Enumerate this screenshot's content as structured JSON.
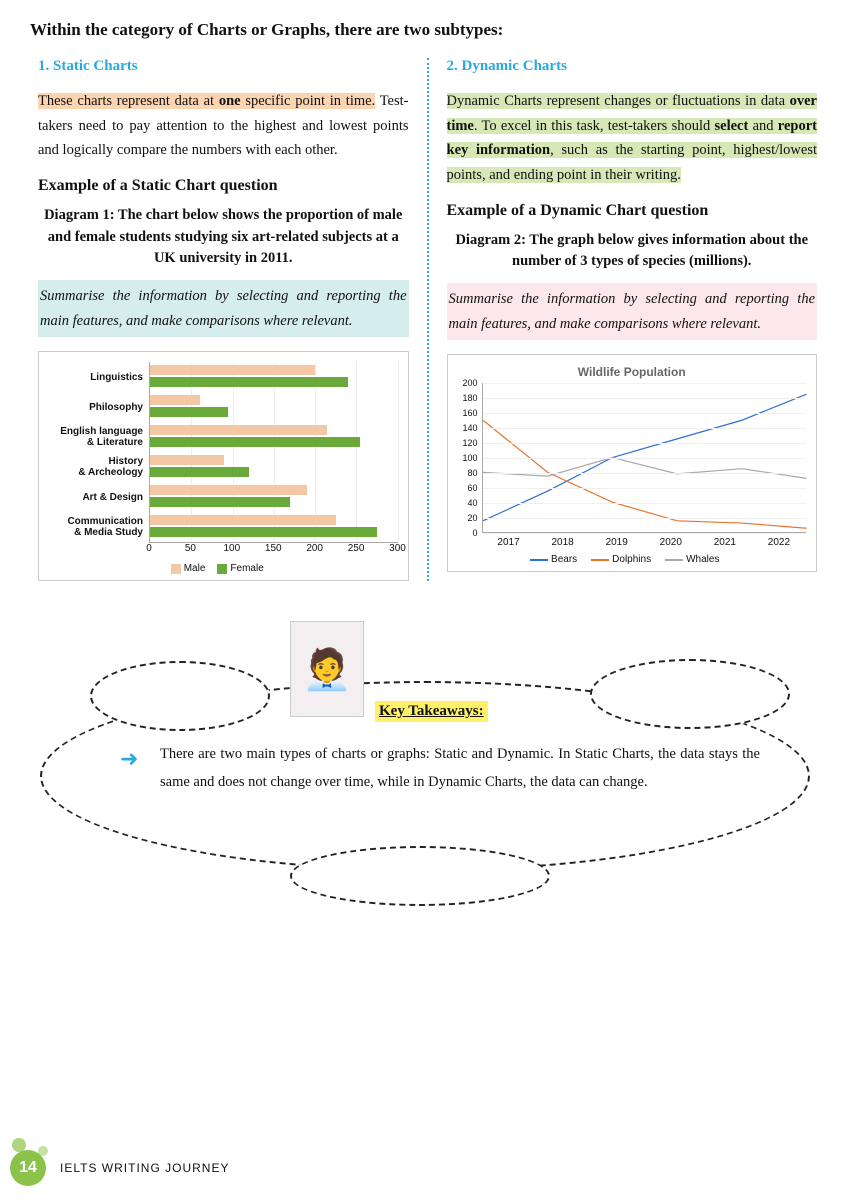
{
  "page": {
    "title": "Within the category of Charts or Graphs, there are two subtypes:",
    "footer_text": "IELTS WRITING JOURNEY",
    "page_number": "14"
  },
  "left": {
    "heading": "1. Static Charts",
    "para_pre": "These charts represent data at ",
    "para_bold1": "one",
    "para_hl_tail": " specific point in time.",
    "para_rest": " Test-takers need to pay attention to the highest and lowest points and logically compare the numbers with each other.",
    "example_heading": "Example of a Static Chart question",
    "diagram_title": "Diagram 1: The chart below shows the proportion of male and female students studying six art-related subjects at a UK university in 2011.",
    "instruction": "Summarise the information by selecting and reporting the main features, and make comparisons where relevant."
  },
  "right": {
    "heading": "2. Dynamic  Charts",
    "para_pre": "Dynamic Charts represent changes or fluctuations in data ",
    "para_bold1": "over time",
    "para_mid1": ". To excel in this task, test-takers should ",
    "para_bold2": "select",
    "para_mid2": " and ",
    "para_bold3": "report key information",
    "para_tail": ", such as the starting point, highest/lowest points, and ending point in their writing.",
    "example_heading": "Example of a Dynamic Chart question",
    "diagram_title": "Diagram 2: The graph below gives information about the number of 3 types of species (millions).",
    "instruction": "Summarise the information by selecting and reporting the main features, and make comparisons where relevant."
  },
  "bar_chart": {
    "type": "bar",
    "categories": [
      "Linguistics",
      "Philosophy",
      "English language & Literature",
      "History & Archeology",
      "Art & Design",
      "Communication & Media Study"
    ],
    "series": [
      {
        "name": "Male",
        "color": "#f4c7a5",
        "values": [
          200,
          60,
          215,
          90,
          190,
          225
        ]
      },
      {
        "name": "Female",
        "color": "#6aaa3a",
        "values": [
          240,
          95,
          255,
          120,
          170,
          275
        ]
      }
    ],
    "xmax": 300,
    "xtick_step": 50,
    "label_fontsize": 10,
    "background": "#ffffff",
    "grid_color": "#eeeeee"
  },
  "line_chart": {
    "type": "line",
    "title": "Wildlife Population",
    "years": [
      "2017",
      "2018",
      "2019",
      "2020",
      "2021",
      "2022"
    ],
    "ymax": 200,
    "ytick_step": 20,
    "series": [
      {
        "name": "Bears",
        "color": "#2f6fd0",
        "values": [
          15,
          55,
          100,
          125,
          150,
          185
        ]
      },
      {
        "name": "Dolphins",
        "color": "#e8742c",
        "values": [
          150,
          80,
          40,
          15,
          12,
          5
        ]
      },
      {
        "name": "Whales",
        "color": "#a9a9a9",
        "values": [
          80,
          75,
          100,
          78,
          85,
          72
        ]
      }
    ],
    "label_fontsize": 9,
    "background": "#ffffff",
    "grid_color": "#f0f0f0"
  },
  "takeaway": {
    "label": "Key Takeaways:",
    "text": "There are two main types of charts or graphs: Static and Dynamic. In Static Charts, the data stays the same and does not change over time, while in Dynamic Charts, the data can change."
  }
}
